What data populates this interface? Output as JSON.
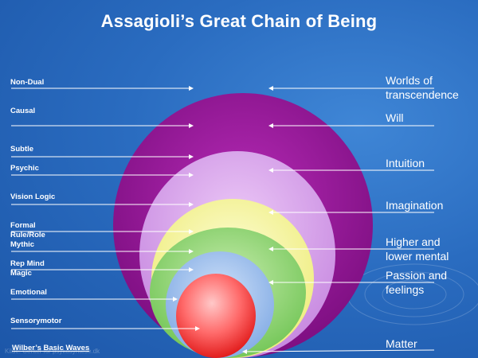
{
  "title": "Assagioli’s Great Chain of Being",
  "left_labels": [
    "Non-Dual",
    "Causal",
    "Subtle",
    "Psychic",
    "Vision Logic",
    "Formal",
    "Rule/Role",
    "Mythic",
    "Rep Mind",
    "Magic",
    "Emotional",
    "Sensorymotor"
  ],
  "right_labels": [
    {
      "line1": "Worlds of",
      "line2": "transcendence"
    },
    {
      "line1": "Will",
      "line2": ""
    },
    {
      "line1": "Intuition",
      "line2": ""
    },
    {
      "line1": "Imagination",
      "line2": ""
    },
    {
      "line1": "Higher and",
      "line2": "lower mental"
    },
    {
      "line1": "Passion and",
      "line2": "feelings"
    },
    {
      "line1": "Matter",
      "line2": ""
    }
  ],
  "footer": "Wilber’s Basic Waves",
  "watermark": "Kilde: Center for psykosyntese.dk",
  "colors": {
    "background": "#2a6cc0",
    "will": "#9b1a9b",
    "intuition": "#d9a0ec",
    "imagination": "#f7f5a0",
    "mental": "#9bd97a",
    "passion": "#9fc2ee",
    "matter": "#ff4848"
  }
}
